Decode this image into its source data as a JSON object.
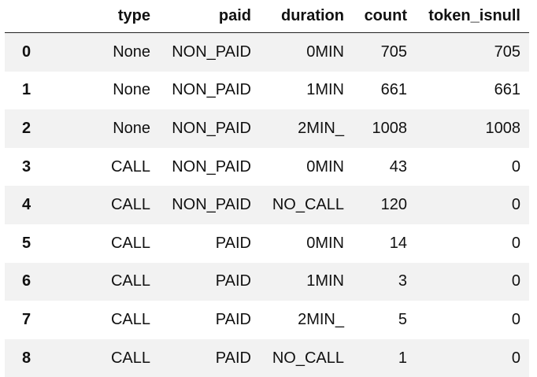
{
  "table": {
    "columns": [
      "",
      "type",
      "paid",
      "duration",
      "count",
      "token_isnull"
    ],
    "rows": [
      {
        "index": "0",
        "type": "None",
        "paid": "NON_PAID",
        "duration": "0MIN",
        "count": "705",
        "token_isnull": "705"
      },
      {
        "index": "1",
        "type": "None",
        "paid": "NON_PAID",
        "duration": "1MIN",
        "count": "661",
        "token_isnull": "661"
      },
      {
        "index": "2",
        "type": "None",
        "paid": "NON_PAID",
        "duration": "2MIN_",
        "count": "1008",
        "token_isnull": "1008"
      },
      {
        "index": "3",
        "type": "CALL",
        "paid": "NON_PAID",
        "duration": "0MIN",
        "count": "43",
        "token_isnull": "0"
      },
      {
        "index": "4",
        "type": "CALL",
        "paid": "NON_PAID",
        "duration": "NO_CALL",
        "count": "120",
        "token_isnull": "0"
      },
      {
        "index": "5",
        "type": "CALL",
        "paid": "PAID",
        "duration": "0MIN",
        "count": "14",
        "token_isnull": "0"
      },
      {
        "index": "6",
        "type": "CALL",
        "paid": "PAID",
        "duration": "1MIN",
        "count": "3",
        "token_isnull": "0"
      },
      {
        "index": "7",
        "type": "CALL",
        "paid": "PAID",
        "duration": "2MIN_",
        "count": "5",
        "token_isnull": "0"
      },
      {
        "index": "8",
        "type": "CALL",
        "paid": "PAID",
        "duration": "NO_CALL",
        "count": "1",
        "token_isnull": "0"
      }
    ]
  }
}
